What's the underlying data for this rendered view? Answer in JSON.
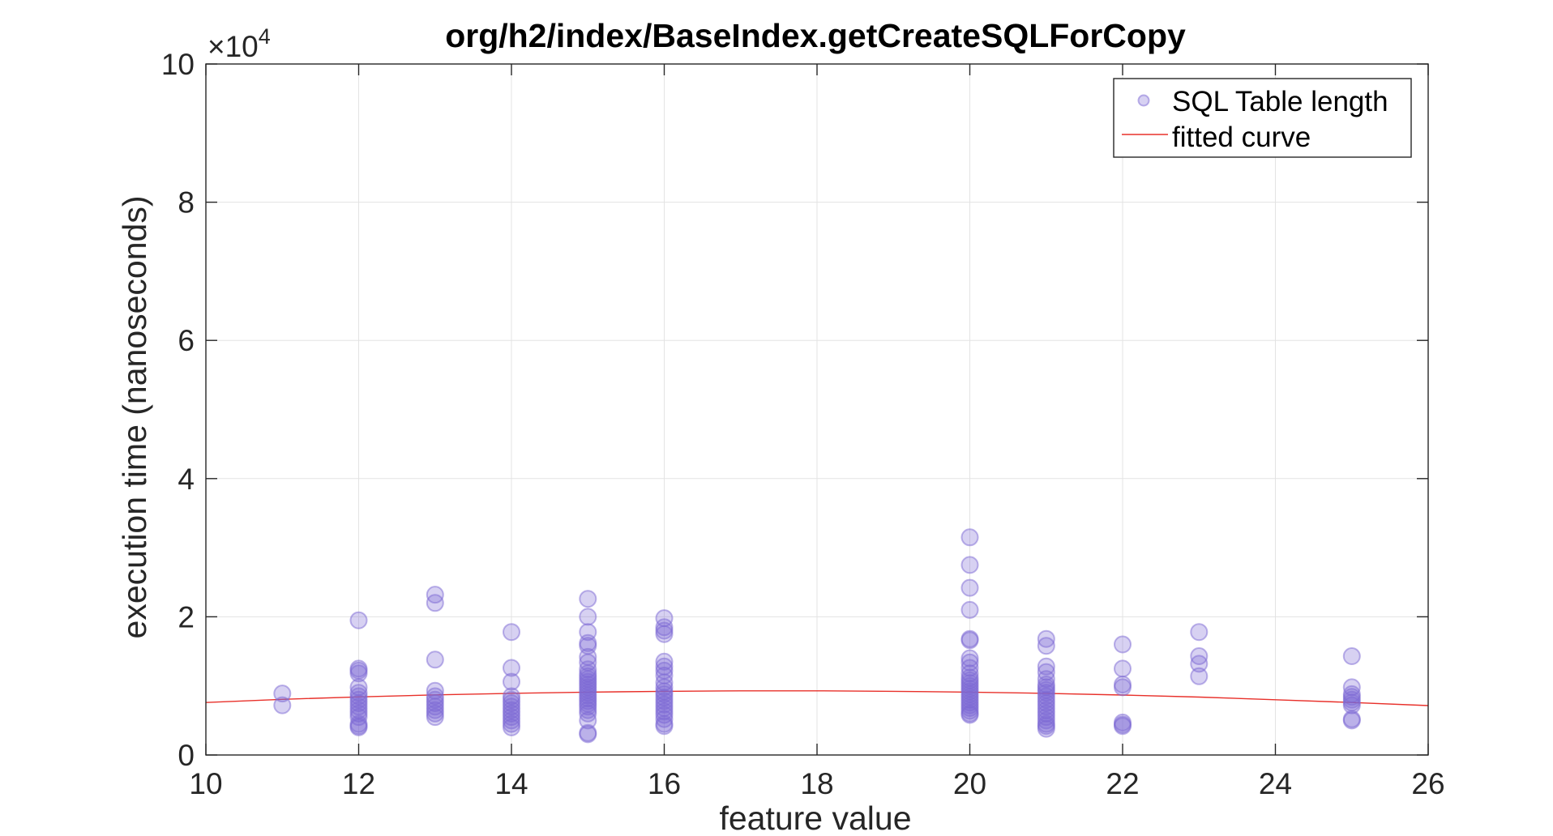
{
  "chart_data": {
    "type": "scatter",
    "title": "org/h2/index/BaseIndex.getCreateSQLForCopy",
    "xlabel": "feature value",
    "ylabel": "execution time (nanoseconds)",
    "y_exponent_label": "×10",
    "y_exponent_power": "4",
    "xlim": [
      10,
      26
    ],
    "ylim": [
      0,
      100000
    ],
    "x_ticks": [
      10,
      12,
      14,
      16,
      18,
      20,
      22,
      24,
      26
    ],
    "y_ticks": [
      0,
      20000,
      40000,
      60000,
      80000,
      100000
    ],
    "y_tick_labels": [
      "0",
      "2",
      "4",
      "6",
      "8",
      "10"
    ],
    "grid": true,
    "legend_position": "top-right",
    "series": [
      {
        "name": "SQL Table length",
        "kind": "scatter",
        "color": "#7b68d4",
        "points": [
          [
            11,
            8900
          ],
          [
            11,
            7200
          ],
          [
            12,
            19500
          ],
          [
            12,
            12500
          ],
          [
            12,
            12200
          ],
          [
            12,
            11800
          ],
          [
            12,
            9800
          ],
          [
            12,
            9000
          ],
          [
            12,
            8500
          ],
          [
            12,
            8000
          ],
          [
            12,
            7500
          ],
          [
            12,
            7000
          ],
          [
            12,
            6500
          ],
          [
            12,
            6000
          ],
          [
            12,
            5500
          ],
          [
            12,
            4500
          ],
          [
            12,
            4200
          ],
          [
            12,
            4000
          ],
          [
            13,
            23200
          ],
          [
            13,
            22000
          ],
          [
            13,
            13800
          ],
          [
            13,
            9300
          ],
          [
            13,
            8500
          ],
          [
            13,
            8000
          ],
          [
            13,
            7500
          ],
          [
            13,
            7000
          ],
          [
            13,
            6500
          ],
          [
            13,
            6000
          ],
          [
            13,
            5500
          ],
          [
            14,
            17800
          ],
          [
            14,
            12600
          ],
          [
            14,
            10600
          ],
          [
            14,
            8500
          ],
          [
            14,
            8000
          ],
          [
            14,
            7500
          ],
          [
            14,
            7000
          ],
          [
            14,
            6500
          ],
          [
            14,
            6000
          ],
          [
            14,
            5500
          ],
          [
            14,
            5000
          ],
          [
            14,
            4500
          ],
          [
            14,
            4000
          ],
          [
            15,
            22600
          ],
          [
            15,
            20000
          ],
          [
            15,
            17800
          ],
          [
            15,
            16200
          ],
          [
            15,
            15800
          ],
          [
            15,
            14200
          ],
          [
            15,
            13400
          ],
          [
            15,
            12400
          ],
          [
            15,
            11800
          ],
          [
            15,
            11400
          ],
          [
            15,
            11000
          ],
          [
            15,
            10600
          ],
          [
            15,
            10200
          ],
          [
            15,
            9800
          ],
          [
            15,
            9400
          ],
          [
            15,
            9000
          ],
          [
            15,
            8600
          ],
          [
            15,
            8200
          ],
          [
            15,
            7800
          ],
          [
            15,
            7400
          ],
          [
            15,
            7000
          ],
          [
            15,
            6500
          ],
          [
            15,
            6000
          ],
          [
            15,
            5000
          ],
          [
            15,
            3200
          ],
          [
            15,
            3000
          ],
          [
            16,
            19800
          ],
          [
            16,
            18500
          ],
          [
            16,
            18000
          ],
          [
            16,
            17500
          ],
          [
            16,
            13500
          ],
          [
            16,
            12800
          ],
          [
            16,
            12200
          ],
          [
            16,
            11500
          ],
          [
            16,
            10500
          ],
          [
            16,
            9800
          ],
          [
            16,
            9200
          ],
          [
            16,
            8800
          ],
          [
            16,
            8300
          ],
          [
            16,
            7800
          ],
          [
            16,
            7300
          ],
          [
            16,
            6800
          ],
          [
            16,
            6300
          ],
          [
            16,
            5800
          ],
          [
            16,
            5200
          ],
          [
            16,
            4500
          ],
          [
            16,
            4200
          ],
          [
            20,
            31500
          ],
          [
            20,
            27500
          ],
          [
            20,
            24200
          ],
          [
            20,
            21000
          ],
          [
            20,
            16800
          ],
          [
            20,
            16600
          ],
          [
            20,
            14000
          ],
          [
            20,
            13400
          ],
          [
            20,
            12600
          ],
          [
            20,
            11800
          ],
          [
            20,
            11200
          ],
          [
            20,
            10800
          ],
          [
            20,
            10400
          ],
          [
            20,
            10000
          ],
          [
            20,
            9600
          ],
          [
            20,
            9200
          ],
          [
            20,
            8800
          ],
          [
            20,
            8400
          ],
          [
            20,
            8000
          ],
          [
            20,
            7600
          ],
          [
            20,
            7200
          ],
          [
            20,
            6800
          ],
          [
            20,
            6400
          ],
          [
            20,
            6000
          ],
          [
            20,
            5800
          ],
          [
            21,
            16800
          ],
          [
            21,
            15800
          ],
          [
            21,
            12800
          ],
          [
            21,
            12000
          ],
          [
            21,
            11000
          ],
          [
            21,
            10200
          ],
          [
            21,
            9800
          ],
          [
            21,
            9400
          ],
          [
            21,
            9000
          ],
          [
            21,
            8500
          ],
          [
            21,
            8000
          ],
          [
            21,
            7500
          ],
          [
            21,
            7000
          ],
          [
            21,
            6500
          ],
          [
            21,
            6000
          ],
          [
            21,
            5500
          ],
          [
            21,
            5000
          ],
          [
            21,
            4500
          ],
          [
            21,
            4200
          ],
          [
            21,
            3800
          ],
          [
            22,
            16000
          ],
          [
            22,
            12500
          ],
          [
            22,
            10200
          ],
          [
            22,
            9800
          ],
          [
            22,
            4700
          ],
          [
            22,
            4400
          ],
          [
            22,
            4200
          ],
          [
            23,
            17800
          ],
          [
            23,
            14300
          ],
          [
            23,
            13200
          ],
          [
            23,
            11400
          ],
          [
            25,
            14300
          ],
          [
            25,
            9800
          ],
          [
            25,
            8800
          ],
          [
            25,
            8400
          ],
          [
            25,
            8000
          ],
          [
            25,
            7600
          ],
          [
            25,
            7200
          ],
          [
            25,
            5200
          ],
          [
            25,
            5000
          ]
        ]
      },
      {
        "name": "fitted curve",
        "kind": "line",
        "color": "#e8302a",
        "x": [
          10,
          11,
          12,
          13,
          14,
          15,
          16,
          17,
          18,
          19,
          20,
          21,
          22,
          23,
          24,
          25,
          26
        ],
        "y": [
          7600,
          8050,
          8400,
          8700,
          8920,
          9100,
          9220,
          9280,
          9280,
          9220,
          9100,
          8920,
          8680,
          8380,
          8000,
          7600,
          7150
        ]
      }
    ]
  }
}
